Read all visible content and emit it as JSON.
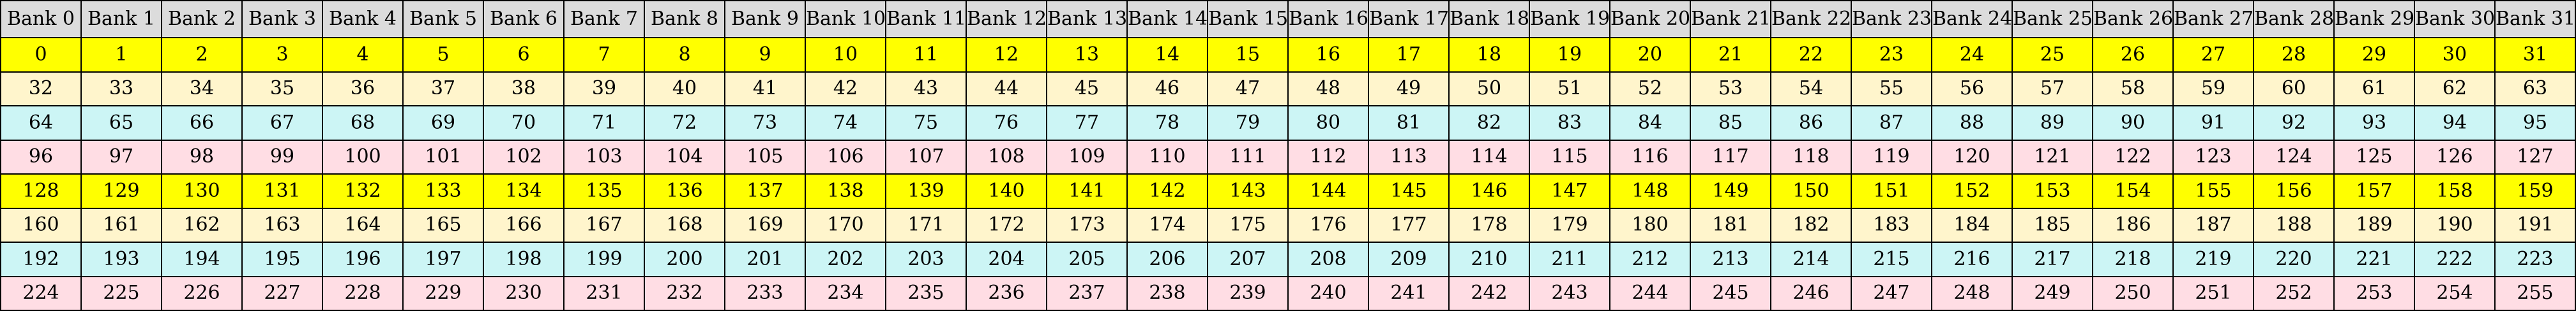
{
  "table": {
    "headers": [
      "Bank 0",
      "Bank 1",
      "Bank 2",
      "Bank 3",
      "Bank 4",
      "Bank 5",
      "Bank 6",
      "Bank 7",
      "Bank 8",
      "Bank 9",
      "Bank 10",
      "Bank 11",
      "Bank 12",
      "Bank 13",
      "Bank 14",
      "Bank 15",
      "Bank 16",
      "Bank 17",
      "Bank 18",
      "Bank 19",
      "Bank 20",
      "Bank 21",
      "Bank 22",
      "Bank 23",
      "Bank 24",
      "Bank 25",
      "Bank 26",
      "Bank 27",
      "Bank 28",
      "Bank 29",
      "Bank 30",
      "Bank 31"
    ],
    "header_color": "#dcdcdc",
    "row_colors": [
      "#ffff00",
      "#fff5cc",
      "#ccf5f5",
      "#ffdde4",
      "#ffff00",
      "#fff5cc",
      "#ccf5f5",
      "#ffdde4"
    ],
    "rows": [
      [
        "0",
        "1",
        "2",
        "3",
        "4",
        "5",
        "6",
        "7",
        "8",
        "9",
        "10",
        "11",
        "12",
        "13",
        "14",
        "15",
        "16",
        "17",
        "18",
        "19",
        "20",
        "21",
        "22",
        "23",
        "24",
        "25",
        "26",
        "27",
        "28",
        "29",
        "30",
        "31"
      ],
      [
        "32",
        "33",
        "34",
        "35",
        "36",
        "37",
        "38",
        "39",
        "40",
        "41",
        "42",
        "43",
        "44",
        "45",
        "46",
        "47",
        "48",
        "49",
        "50",
        "51",
        "52",
        "53",
        "54",
        "55",
        "56",
        "57",
        "58",
        "59",
        "60",
        "61",
        "62",
        "63"
      ],
      [
        "64",
        "65",
        "66",
        "67",
        "68",
        "69",
        "70",
        "71",
        "72",
        "73",
        "74",
        "75",
        "76",
        "77",
        "78",
        "79",
        "80",
        "81",
        "82",
        "83",
        "84",
        "85",
        "86",
        "87",
        "88",
        "89",
        "90",
        "91",
        "92",
        "93",
        "94",
        "95"
      ],
      [
        "96",
        "97",
        "98",
        "99",
        "100",
        "101",
        "102",
        "103",
        "104",
        "105",
        "106",
        "107",
        "108",
        "109",
        "110",
        "111",
        "112",
        "113",
        "114",
        "115",
        "116",
        "117",
        "118",
        "119",
        "120",
        "121",
        "122",
        "123",
        "124",
        "125",
        "126",
        "127"
      ],
      [
        "128",
        "129",
        "130",
        "131",
        "132",
        "133",
        "134",
        "135",
        "136",
        "137",
        "138",
        "139",
        "140",
        "141",
        "142",
        "143",
        "144",
        "145",
        "146",
        "147",
        "148",
        "149",
        "150",
        "151",
        "152",
        "153",
        "154",
        "155",
        "156",
        "157",
        "158",
        "159"
      ],
      [
        "160",
        "161",
        "162",
        "163",
        "164",
        "165",
        "166",
        "167",
        "168",
        "169",
        "170",
        "171",
        "172",
        "173",
        "174",
        "175",
        "176",
        "177",
        "178",
        "179",
        "180",
        "181",
        "182",
        "183",
        "184",
        "185",
        "186",
        "187",
        "188",
        "189",
        "190",
        "191"
      ],
      [
        "192",
        "193",
        "194",
        "195",
        "196",
        "197",
        "198",
        "199",
        "200",
        "201",
        "202",
        "203",
        "204",
        "205",
        "206",
        "207",
        "208",
        "209",
        "210",
        "211",
        "212",
        "213",
        "214",
        "215",
        "216",
        "217",
        "218",
        "219",
        "220",
        "221",
        "222",
        "223"
      ],
      [
        "224",
        "225",
        "226",
        "227",
        "228",
        "229",
        "230",
        "231",
        "232",
        "233",
        "234",
        "235",
        "236",
        "237",
        "238",
        "239",
        "240",
        "241",
        "242",
        "243",
        "244",
        "245",
        "246",
        "247",
        "248",
        "249",
        "250",
        "251",
        "252",
        "253",
        "254",
        "255"
      ]
    ]
  }
}
